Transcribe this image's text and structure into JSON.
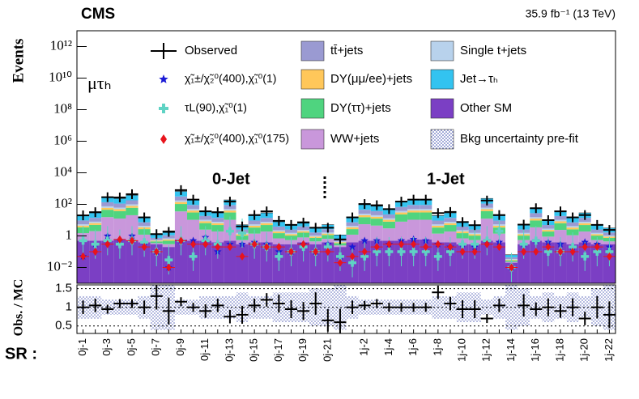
{
  "chart_data": {
    "type": "stacked-hist-log",
    "title": "CMS",
    "subtitle": "35.9 fb⁻¹ (13 TeV)",
    "ylabel": "Events",
    "xlabel": "SR :",
    "annotations": {
      "channel": "μτₕ",
      "zero_jet": "0-Jet",
      "one_jet": "1-Jet"
    },
    "categories": [
      "0j-1",
      null,
      "0j-3",
      null,
      "0j-5",
      null,
      "0j-7",
      null,
      "0j-9",
      null,
      "0j-11",
      null,
      "0j-13",
      null,
      "0j-15",
      null,
      "0j-17",
      null,
      "0j-19",
      null,
      "0j-21",
      null,
      null,
      "1j-2",
      null,
      "1j-4",
      null,
      "1j-6",
      null,
      "1j-8",
      null,
      "1j-10",
      null,
      "1j-12",
      null,
      "1j-14",
      null,
      "1j-16",
      null,
      "1j-18",
      null,
      "1j-20",
      null,
      "1j-22"
    ],
    "log_y": true,
    "ylim": [
      0.001,
      10000000000000
    ],
    "yticks": [
      {
        "value": 0.01,
        "label": "10⁻²"
      },
      1,
      {
        "value": 100,
        "label": "10²"
      },
      {
        "value": 10000,
        "label": "10⁴"
      },
      {
        "value": 1000000,
        "label": "10⁶"
      },
      {
        "value": 100000000,
        "label": "10⁸"
      },
      {
        "value": 10000000000,
        "label": "10¹⁰"
      },
      {
        "value": 1000000000000,
        "label": "10¹²"
      }
    ],
    "legend": "top",
    "series": [
      {
        "name": "Other SM",
        "color": "#7b3fc4",
        "values": [
          0.5,
          0.5,
          0.5,
          0.6,
          0.5,
          0.4,
          0.3,
          0.2,
          0.6,
          0.5,
          0.5,
          0.4,
          0.5,
          0.3,
          0.4,
          0.4,
          0.3,
          0.3,
          0.4,
          0.3,
          0.4,
          0.2,
          0.4,
          0.5,
          0.5,
          0.5,
          0.5,
          0.6,
          0.6,
          0.4,
          0.4,
          0.3,
          0.3,
          0.5,
          0.4,
          0.02,
          0.3,
          0.5,
          0.4,
          0.4,
          0.3,
          0.4,
          0.3,
          0.3
        ]
      },
      {
        "name": "WW+jets",
        "color": "#c997db",
        "values": [
          1,
          1.5,
          15,
          12,
          20,
          0.8,
          0.05,
          0.1,
          35,
          10,
          2,
          1.5,
          10,
          0.25,
          1,
          1.5,
          0.4,
          0.25,
          0.4,
          0.15,
          0.25,
          0.05,
          0.8,
          5,
          4,
          2.5,
          7.5,
          10,
          10,
          1,
          1.5,
          0.4,
          0.25,
          12,
          1,
          0.003,
          0.25,
          3,
          0.5,
          2,
          0.8,
          1.5,
          0.25,
          0.15
        ]
      },
      {
        "name": "DY(ττ)+jets",
        "color": "#4fd47f",
        "values": [
          2,
          3,
          30,
          25,
          40,
          1.5,
          0.1,
          0.2,
          70,
          20,
          4,
          3,
          20,
          0.5,
          2,
          3,
          0.8,
          0.5,
          0.8,
          0.3,
          0.5,
          0.1,
          1.5,
          10,
          8,
          5,
          15,
          20,
          20,
          2,
          3,
          0.8,
          0.5,
          25,
          2,
          0.005,
          0.5,
          6,
          1,
          4,
          1.5,
          3,
          0.5,
          0.3
        ]
      },
      {
        "name": "DY(μμ/ee)+jets",
        "color": "#ffc75a",
        "values": [
          1,
          1.5,
          15,
          12,
          20,
          0.8,
          0.05,
          0.1,
          35,
          10,
          2,
          1.5,
          10,
          0.25,
          1,
          1.5,
          0.4,
          0.25,
          0.4,
          0.15,
          0.25,
          0.05,
          0.8,
          5,
          4,
          2.5,
          7.5,
          10,
          10,
          1,
          1.5,
          0.4,
          0.25,
          12,
          1,
          0.003,
          0.25,
          3,
          0.5,
          2,
          0.8,
          1.5,
          0.25,
          0.15
        ]
      },
      {
        "name": "Single t+jets",
        "color": "#b8d2ec",
        "values": [
          1,
          1.5,
          15,
          12,
          20,
          0.8,
          0.05,
          0.1,
          35,
          10,
          2,
          1.5,
          10,
          0.25,
          1,
          1.5,
          0.4,
          0.25,
          0.4,
          0.15,
          0.25,
          0.05,
          0.8,
          5,
          4,
          2.5,
          7.5,
          10,
          10,
          1,
          1.5,
          0.4,
          0.25,
          12,
          1,
          0.003,
          0.25,
          3,
          0.5,
          2,
          0.8,
          1.5,
          0.25,
          0.15
        ]
      },
      {
        "name": "tt̄+jets",
        "color": "#9a9ad2",
        "values": [
          4,
          6,
          60,
          50,
          80,
          3,
          0.2,
          0.4,
          140,
          40,
          8,
          6,
          40,
          1,
          4,
          6,
          1.6,
          1,
          1.6,
          0.6,
          1,
          0.2,
          3,
          20,
          16,
          10,
          30,
          40,
          40,
          4,
          6,
          1.6,
          1,
          50,
          4,
          0.01,
          1,
          12,
          2,
          8,
          3,
          6,
          1,
          0.6
        ]
      },
      {
        "name": "Jet→τₕ",
        "color": "#33c3f0",
        "values": [
          10,
          15,
          150,
          125,
          200,
          7,
          0.5,
          1,
          350,
          100,
          20,
          15,
          100,
          2.5,
          10,
          15,
          4,
          2.5,
          4,
          1.5,
          2.5,
          0.5,
          7,
          50,
          40,
          25,
          75,
          100,
          100,
          10,
          15,
          4,
          2.5,
          125,
          10,
          0.02,
          2.5,
          30,
          5,
          20,
          7,
          15,
          2.5,
          1.5
        ]
      }
    ],
    "observed": {
      "name": "Observed",
      "values": [
        20,
        32,
        285,
        275,
        440,
        15,
        1.3,
        1.8,
        800,
        200,
        36,
        32,
        150,
        4,
        21,
        36,
        9,
        5,
        7,
        3.3,
        3.3,
        0.6,
        15,
        105,
        88,
        50,
        150,
        200,
        200,
        28,
        33,
        7.6,
        4.8,
        175,
        21,
        null,
        5.2,
        57,
        10,
        36,
        15,
        21,
        5,
        2.4
      ]
    },
    "signals": [
      {
        "name": "χ̃₁±/χ̃₂⁰(400),χ̃₁⁰(1)",
        "color": "#1a1ad6",
        "marker": "star",
        "values": [
          0.05,
          0.3,
          1,
          0.5,
          1,
          0.4,
          0.1,
          0.01,
          0.5,
          0.5,
          0.8,
          0.1,
          0.3,
          0.3,
          0.4,
          0.3,
          0.1,
          0.1,
          0.3,
          0.1,
          0.3,
          0.05,
          0.2,
          0.5,
          0.5,
          0.3,
          0.5,
          0.6,
          0.5,
          0.3,
          0.2,
          0.3,
          0.2,
          0.5,
          0.4,
          0.01,
          0.3,
          0.5,
          0.4,
          0.3,
          0.2,
          0.4,
          0.3,
          0.2
        ]
      },
      {
        "name": "τL(90),χ̃₁⁰(1)",
        "color": "#5fd3c4",
        "marker": "cross",
        "values": [
          0.5,
          0.3,
          0.5,
          0.3,
          0.5,
          0.4,
          0.1,
          0.03,
          0.5,
          0.05,
          0.5,
          0.3,
          2,
          1.5,
          0.3,
          0.2,
          0.05,
          0.1,
          0.2,
          0.1,
          0.2,
          0.05,
          0.02,
          0.05,
          0.1,
          0.1,
          0.1,
          0.1,
          0.1,
          0.05,
          0.1,
          0.3,
          0.3,
          0.5,
          2,
          0.01,
          0.3,
          0.5,
          0.1,
          0.1,
          0.2,
          0.05,
          0.1,
          0.1
        ]
      },
      {
        "name": "χ̃₁±/χ̃₂⁰(400),χ̃₁⁰(175)",
        "color": "#e8141c",
        "marker": "diamond",
        "values": [
          0.05,
          0.1,
          0.3,
          0.6,
          0.5,
          0.2,
          0.1,
          0.01,
          0.5,
          0.3,
          0.3,
          0.2,
          0.2,
          0.05,
          0.3,
          0.2,
          0.2,
          0.1,
          0.3,
          0.1,
          0.1,
          0.02,
          0.05,
          0.1,
          0.2,
          0.3,
          0.3,
          0.3,
          0.2,
          0.3,
          0.2,
          0.1,
          0.1,
          0.3,
          0.2,
          0.01,
          0.1,
          0.1,
          0.2,
          0.1,
          0.1,
          0.2,
          0.2,
          0.05
        ]
      }
    ],
    "uncertainty": {
      "name": "Bkg uncertainty pre-fit",
      "color": "#2233aa",
      "values": [
        0.3,
        0.3,
        0.2,
        0.2,
        0.2,
        0.3,
        0.6,
        0.6,
        0.2,
        0.2,
        0.3,
        0.3,
        0.3,
        0.4,
        0.3,
        0.3,
        0.4,
        0.4,
        0.4,
        0.5,
        0.5,
        0.6,
        0.3,
        0.2,
        0.2,
        0.2,
        0.2,
        0.2,
        0.2,
        0.3,
        0.3,
        0.4,
        0.4,
        0.2,
        0.3,
        0.6,
        0.5,
        0.3,
        0.4,
        0.3,
        0.4,
        0.3,
        0.5,
        0.6
      ]
    },
    "ratio": {
      "ylabel": "Obs. / MC",
      "ylim": [
        0.3,
        1.6
      ],
      "yticks": [
        0.5,
        1,
        1.5
      ],
      "values": [
        1,
        1.05,
        0.95,
        1.1,
        1.1,
        1,
        1.3,
        0.9,
        1.15,
        1,
        0.9,
        1.05,
        0.75,
        0.8,
        1.05,
        1.2,
        1.1,
        0.95,
        0.9,
        1.1,
        0.65,
        0.6,
        1,
        1.05,
        1.1,
        1,
        1,
        1,
        1,
        1.4,
        1.1,
        0.95,
        0.95,
        0.7,
        1.05,
        null,
        1.05,
        0.95,
        1,
        0.9,
        1,
        0.7,
        1,
        0.8
      ]
    }
  }
}
